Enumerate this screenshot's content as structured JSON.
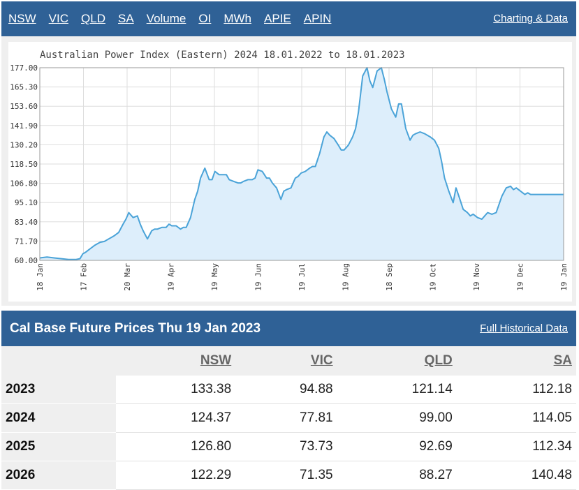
{
  "nav": {
    "links": [
      "NSW",
      "VIC",
      "QLD",
      "SA",
      "Volume",
      "OI",
      "MWh",
      "APIE",
      "APIN"
    ],
    "charting": "Charting & Data"
  },
  "chart_data": {
    "type": "area",
    "title": "Australian Power Index (Eastern) 2024 18.01.2022 to 18.01.2023",
    "y_ticks": [
      "177.00",
      "165.30",
      "153.60",
      "141.90",
      "130.20",
      "118.50",
      "106.80",
      "95.10",
      "83.40",
      "71.70",
      "60.00"
    ],
    "ylim": [
      60,
      177
    ],
    "x_ticks": [
      "18 Jan",
      "17 Feb",
      "20 Mar",
      "19 Apr",
      "19 May",
      "19 Jun",
      "19 Jul",
      "19 Aug",
      "18 Sep",
      "19 Oct",
      "19 Nov",
      "19 Dec",
      "19 Jan"
    ],
    "grid": true,
    "line_color": "#4aa3d8",
    "fill_color": "#ddeefb",
    "x": [
      0,
      5,
      10,
      15,
      20,
      25,
      28,
      30,
      32,
      35,
      38,
      40,
      42,
      45,
      48,
      50,
      52,
      55,
      58,
      60,
      62,
      65,
      68,
      70,
      72,
      75,
      78,
      80,
      82,
      85,
      88,
      90,
      92,
      95,
      98,
      100,
      102,
      105,
      108,
      110,
      112,
      115,
      118,
      120,
      122,
      125,
      128,
      130,
      132,
      135,
      138,
      140,
      142,
      145,
      148,
      150,
      152,
      155,
      158,
      160,
      162,
      165,
      168,
      170,
      172,
      175,
      178,
      180,
      182,
      185,
      188,
      190,
      192,
      195,
      198,
      200,
      202,
      205,
      208,
      210,
      212,
      215,
      218,
      220,
      222,
      225,
      228,
      230,
      232,
      235,
      238,
      240,
      242,
      245,
      248,
      250,
      252,
      255,
      258,
      260,
      262,
      265,
      268,
      270,
      272,
      275,
      278,
      280,
      282,
      285,
      288,
      290,
      292,
      295,
      298,
      300,
      302,
      305,
      308,
      310,
      312,
      315,
      318,
      320,
      322,
      325,
      328,
      330,
      332,
      335,
      338,
      340,
      342,
      345,
      348,
      350,
      352,
      355,
      358,
      360,
      362,
      365
    ],
    "values": [
      61.5,
      62,
      61.5,
      61,
      60.5,
      60.5,
      61,
      64,
      65,
      67,
      69,
      70,
      71,
      71.5,
      73,
      74,
      75,
      77,
      82,
      85,
      89,
      86,
      87,
      82,
      78,
      73,
      78,
      79,
      79,
      80,
      80,
      82,
      81,
      81,
      79,
      80,
      80,
      86,
      97,
      102,
      110,
      116,
      109,
      109,
      114,
      112,
      112,
      112,
      109,
      108,
      107,
      107,
      108,
      109,
      109,
      110,
      115,
      114,
      110,
      110,
      107,
      104,
      97,
      102,
      103,
      104,
      110,
      111,
      113,
      114,
      116,
      117,
      117,
      125,
      135,
      138,
      136,
      134,
      130,
      127,
      127,
      130,
      135,
      140,
      150,
      172,
      177,
      169,
      165,
      175,
      177,
      170,
      162,
      152,
      147,
      155,
      155,
      140,
      133,
      136,
      137,
      138,
      137,
      136,
      135,
      133,
      128,
      120,
      110,
      102,
      95,
      104,
      99,
      91,
      89,
      87,
      88,
      86,
      85,
      87,
      89,
      88,
      89,
      94,
      99,
      104,
      105,
      103,
      104,
      102,
      100,
      101,
      100,
      100,
      100,
      100,
      100,
      100,
      100,
      100,
      100,
      100
    ]
  },
  "table": {
    "title": "Cal Base Future Prices Thu 19 Jan 2023",
    "link": "Full Historical Data",
    "columns": [
      "NSW",
      "VIC",
      "QLD",
      "SA"
    ],
    "rows": [
      {
        "year": "2023",
        "values": [
          "133.38",
          "94.88",
          "121.14",
          "112.18"
        ]
      },
      {
        "year": "2024",
        "values": [
          "124.37",
          "77.81",
          "99.00",
          "114.05"
        ]
      },
      {
        "year": "2025",
        "values": [
          "126.80",
          "73.73",
          "92.69",
          "112.34"
        ]
      },
      {
        "year": "2026",
        "values": [
          "122.29",
          "71.35",
          "88.27",
          "140.48"
        ]
      }
    ]
  }
}
